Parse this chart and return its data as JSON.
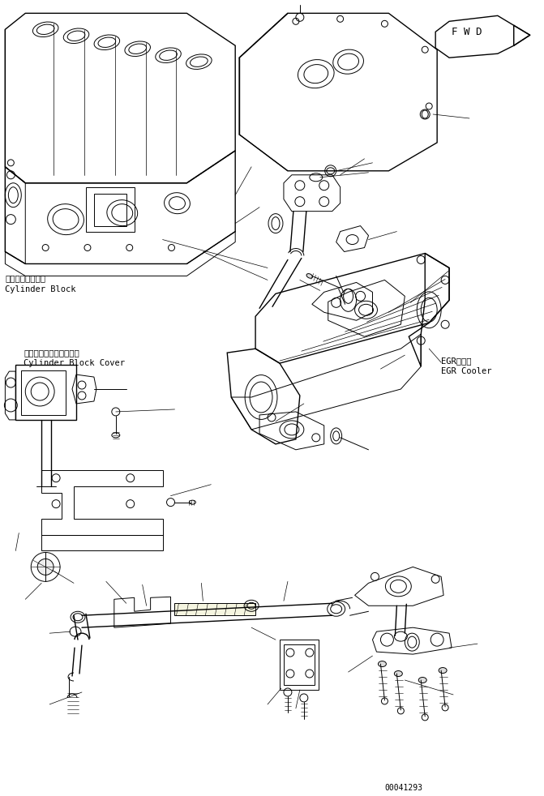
{
  "fig_width": 6.71,
  "fig_height": 9.82,
  "dpi": 100,
  "bg_color": "#ffffff",
  "line_color": "#000000",
  "labels": {
    "cylinder_block_jp": "シリンダブロック",
    "cylinder_block_en": "Cylinder Block",
    "cylinder_block_cover_jp": "シリンダブロックカバー",
    "cylinder_block_cover_en": "Cylinder Block Cover",
    "egr_cooler_jp": "EGRクーラ",
    "egr_cooler_en": "EGR Cooler",
    "fwd": "FWD",
    "part_number": "00041293"
  },
  "font_size": 7.5,
  "font_family": "monospace",
  "lw": 0.7,
  "lw2": 1.0
}
